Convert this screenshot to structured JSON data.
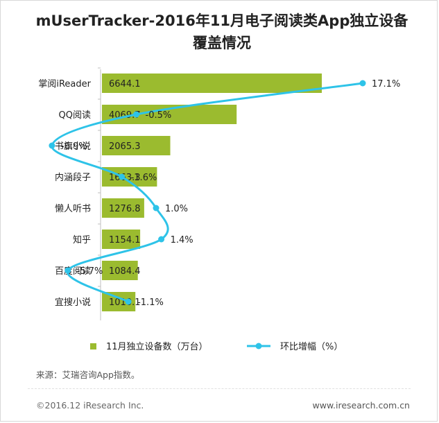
{
  "chart_data": {
    "type": "bar",
    "orientation": "horizontal",
    "title": "mUserTracker-2016年11月电子阅读类App独立设备覆盖情况",
    "title_lines": [
      "mUserTracker-2016年11月电子阅读类App独立设备",
      "覆盖情况"
    ],
    "categories": [
      "掌阅iReader",
      "QQ阅读",
      "书旗小说",
      "内涵段子",
      "懒人听书",
      "知乎",
      "百度阅读",
      "宜搜小说"
    ],
    "series": [
      {
        "name": "11月独立设备数（万台）",
        "type": "bar",
        "values": [
          6644.1,
          4069.7,
          2065.3,
          1663.3,
          1276.8,
          1154.1,
          1084.4,
          1010.1
        ],
        "labels": [
          "6644.1",
          "4069.7",
          "2065.3",
          "1663.3",
          "1276.8",
          "1154.1",
          "1084.4",
          "1010.1"
        ]
      },
      {
        "name": "环比增幅（%）",
        "type": "line",
        "values": [
          17.1,
          -0.5,
          -6.9,
          -1.6,
          1.0,
          1.4,
          -5.7,
          -1.1
        ],
        "labels": [
          "17.1%",
          "-0.5%",
          "-6.9%",
          "-1.6%",
          "1.0%",
          "1.4%",
          "-5.7%",
          "-1.1%"
        ]
      }
    ],
    "bar_axis_range": [
      0,
      7000
    ],
    "line_axis_range": [
      -10,
      18
    ],
    "legend_position": "bottom",
    "colors": {
      "bar": "#9BBB2F",
      "line": "#2EC3E8"
    }
  },
  "source": "来源：艾瑞咨询App指数。",
  "footer": {
    "copyright": "©2016.12 iResearch Inc.",
    "website": "www.iresearch.com.cn"
  }
}
